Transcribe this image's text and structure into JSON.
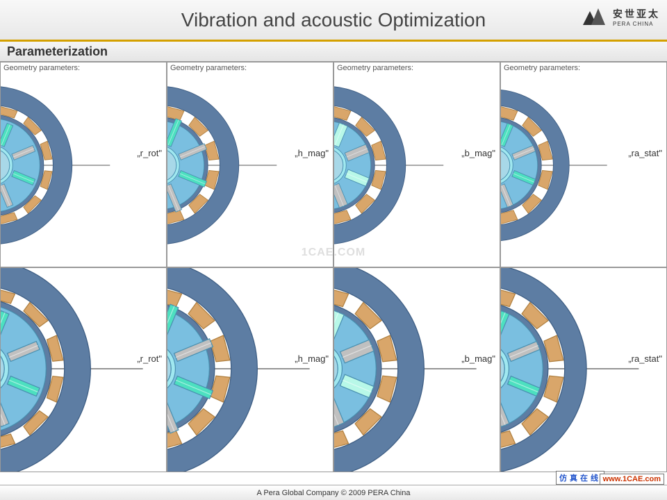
{
  "header": {
    "title": "Vibration and acoustic Optimization",
    "logo_chinese": "安世亚太",
    "logo_english": "PERA CHINA"
  },
  "section": {
    "title": "Parameterization"
  },
  "cells": [
    {
      "header": "Geometry parameters:",
      "param": "„r_rot\"",
      "variant": "r_rot"
    },
    {
      "header": "Geometry parameters:",
      "param": "„h_mag\"",
      "variant": "h_mag"
    },
    {
      "header": "Geometry parameters:",
      "param": "„b_mag\"",
      "variant": "b_mag"
    },
    {
      "header": "Geometry parameters:",
      "param": "„ra_stat\"",
      "variant": "ra_stat"
    },
    {
      "header": "",
      "param": "„r_rot\"",
      "variant": "r_rot"
    },
    {
      "header": "",
      "param": "„h_mag\"",
      "variant": "h_mag"
    },
    {
      "header": "",
      "param": "„b_mag\"",
      "variant": "b_mag"
    },
    {
      "header": "",
      "param": "„ra_stat\"",
      "variant": "ra_stat"
    }
  ],
  "style": {
    "stator_fill": "#5d7da3",
    "stator_stroke": "#3d5d83",
    "rotor_fill": "#7abfe0",
    "rotor_stroke": "#4a90b0",
    "shaft_fill": "#a8d8e8",
    "wedge_fill": "#d9a66a",
    "wedge_stroke": "#b08040",
    "magnet_fill": "#4de0c0",
    "magnet_light": "#b8f8e8",
    "magnet_alt": "#c0c0c0",
    "ring_fill": "#a0e8f0",
    "axis_color": "#555555",
    "arrow_color": "#3040c0",
    "marker_color": "#c04040",
    "grid_color": "#e0e8f0",
    "hub_color": "#ffffff"
  },
  "footer": {
    "copyright": "A Pera Global Company © 2009 PERA China",
    "badge1": "仿真在线",
    "badge2": "www.1CAE.com"
  },
  "watermark": "1CAE.COM"
}
